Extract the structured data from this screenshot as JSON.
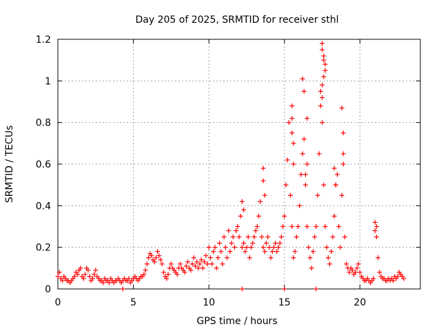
{
  "chart_data": {
    "type": "scatter",
    "title": "Day 205 of 2025, SRMTID for receiver sthl",
    "xlabel": "GPS time / hours",
    "ylabel": "SRMTID / TECUs",
    "xlim": [
      0,
      24
    ],
    "ylim": [
      0,
      1.2
    ],
    "xticks": [
      "0",
      "5",
      "10",
      "15",
      "20"
    ],
    "yticks": [
      "0",
      "0.2",
      "0.4",
      "0.6",
      "0.8",
      "1",
      "1.2"
    ],
    "grid": true,
    "marker": "+",
    "color": "#ff0000",
    "series": [
      {
        "name": "sthl",
        "x": [
          0.0,
          0.1,
          0.2,
          0.3,
          0.4,
          0.5,
          0.6,
          0.7,
          0.8,
          0.9,
          1.0,
          1.1,
          1.2,
          1.3,
          1.4,
          1.5,
          1.6,
          1.7,
          1.8,
          1.9,
          2.0,
          2.1,
          2.2,
          2.3,
          2.4,
          2.5,
          2.6,
          2.7,
          2.8,
          2.9,
          3.0,
          3.1,
          3.2,
          3.3,
          3.4,
          3.5,
          3.6,
          3.7,
          3.8,
          3.9,
          4.0,
          4.1,
          4.2,
          4.3,
          4.4,
          4.5,
          4.6,
          4.7,
          4.8,
          4.9,
          5.0,
          5.1,
          5.2,
          5.3,
          5.4,
          5.5,
          5.6,
          5.7,
          5.8,
          5.9,
          6.0,
          6.1,
          6.2,
          6.3,
          6.4,
          6.5,
          6.6,
          6.7,
          6.8,
          6.9,
          7.0,
          7.1,
          7.2,
          7.3,
          7.4,
          7.5,
          7.6,
          7.7,
          7.8,
          7.9,
          8.0,
          8.1,
          8.2,
          8.3,
          8.4,
          8.5,
          8.6,
          8.7,
          8.8,
          8.9,
          9.0,
          9.1,
          9.2,
          9.3,
          9.4,
          9.5,
          9.6,
          9.7,
          9.8,
          9.9,
          10.0,
          10.1,
          10.2,
          10.3,
          10.4,
          10.5,
          10.6,
          10.7,
          10.8,
          10.9,
          11.0,
          11.1,
          11.2,
          11.3,
          11.4,
          11.5,
          11.6,
          11.7,
          11.8,
          11.9,
          12.0,
          12.1,
          12.2,
          12.3,
          12.4,
          12.5,
          12.6,
          12.7,
          12.8,
          12.9,
          13.0,
          13.1,
          13.2,
          13.3,
          13.4,
          13.5,
          13.6,
          13.7,
          13.8,
          13.9,
          14.0,
          14.1,
          14.2,
          14.3,
          14.4,
          14.5,
          14.6,
          14.7,
          14.8,
          14.9,
          15.0,
          15.1,
          15.2,
          15.3,
          15.4,
          15.5,
          15.6,
          15.7,
          15.8,
          15.9,
          16.0,
          16.1,
          16.2,
          16.3,
          16.4,
          16.5,
          16.6,
          16.7,
          16.8,
          16.9,
          17.0,
          17.1,
          17.2,
          17.3,
          17.4,
          17.5,
          17.6,
          17.7,
          17.8,
          17.9,
          18.0,
          18.1,
          18.2,
          18.3,
          18.4,
          18.5,
          18.6,
          18.7,
          18.8,
          18.9,
          19.0,
          19.1,
          19.2,
          19.3,
          19.4,
          19.5,
          19.6,
          19.7,
          19.8,
          19.9,
          20.0,
          20.1,
          20.2,
          20.3,
          20.4,
          20.5,
          20.6,
          20.7,
          20.8,
          20.9,
          21.0,
          21.1,
          21.2,
          21.3,
          21.4,
          21.5,
          21.6,
          21.7,
          21.8,
          21.9,
          22.0,
          22.1,
          22.2,
          22.3,
          22.4,
          22.5,
          22.6,
          22.7,
          22.8,
          22.9,
          15.5,
          15.5,
          15.5,
          15.6,
          15.6,
          16.2,
          16.3,
          16.4,
          16.5,
          16.5,
          17.5,
          17.5,
          17.6,
          17.6,
          17.7,
          17.7,
          17.6,
          17.5,
          17.5,
          17.4,
          18.8,
          18.9,
          18.9,
          18.3,
          18.4,
          13.6,
          13.6,
          13.7,
          12.2,
          12.3,
          21.0,
          21.1,
          4.3,
          12.2,
          15.0,
          17.1
        ],
        "y": [
          0.06,
          0.08,
          0.05,
          0.04,
          0.06,
          0.05,
          0.04,
          0.04,
          0.03,
          0.04,
          0.05,
          0.06,
          0.08,
          0.07,
          0.09,
          0.1,
          0.06,
          0.05,
          0.07,
          0.1,
          0.09,
          0.06,
          0.04,
          0.05,
          0.07,
          0.09,
          0.06,
          0.05,
          0.04,
          0.04,
          0.03,
          0.05,
          0.04,
          0.04,
          0.03,
          0.05,
          0.04,
          0.03,
          0.04,
          0.04,
          0.05,
          0.04,
          0.03,
          0.04,
          0.05,
          0.04,
          0.04,
          0.05,
          0.03,
          0.04,
          0.05,
          0.06,
          0.05,
          0.04,
          0.05,
          0.06,
          0.06,
          0.07,
          0.09,
          0.12,
          0.15,
          0.17,
          0.16,
          0.14,
          0.13,
          0.15,
          0.18,
          0.16,
          0.14,
          0.12,
          0.08,
          0.06,
          0.05,
          0.07,
          0.1,
          0.12,
          0.1,
          0.09,
          0.08,
          0.07,
          0.1,
          0.12,
          0.1,
          0.09,
          0.08,
          0.11,
          0.13,
          0.1,
          0.09,
          0.12,
          0.15,
          0.11,
          0.13,
          0.1,
          0.12,
          0.14,
          0.1,
          0.13,
          0.16,
          0.12,
          0.2,
          0.15,
          0.12,
          0.18,
          0.2,
          0.1,
          0.15,
          0.22,
          0.18,
          0.12,
          0.25,
          0.2,
          0.15,
          0.28,
          0.18,
          0.22,
          0.25,
          0.2,
          0.28,
          0.3,
          0.25,
          0.35,
          0.2,
          0.22,
          0.18,
          0.2,
          0.25,
          0.15,
          0.2,
          0.22,
          0.25,
          0.28,
          0.3,
          0.35,
          0.42,
          0.25,
          0.2,
          0.18,
          0.22,
          0.25,
          0.2,
          0.15,
          0.18,
          0.2,
          0.22,
          0.18,
          0.2,
          0.22,
          0.25,
          0.3,
          0.35,
          0.5,
          0.62,
          0.8,
          0.45,
          0.3,
          0.15,
          0.18,
          0.25,
          0.3,
          0.4,
          0.55,
          0.65,
          0.72,
          0.5,
          0.3,
          0.2,
          0.15,
          0.1,
          0.18,
          0.25,
          0.3,
          0.45,
          0.65,
          0.95,
          0.8,
          0.5,
          0.3,
          0.2,
          0.15,
          0.12,
          0.18,
          0.25,
          0.35,
          0.5,
          0.55,
          0.3,
          0.2,
          0.45,
          0.65,
          0.25,
          0.12,
          0.1,
          0.08,
          0.1,
          0.09,
          0.07,
          0.08,
          0.1,
          0.12,
          0.08,
          0.06,
          0.05,
          0.04,
          0.04,
          0.05,
          0.04,
          0.03,
          0.04,
          0.05,
          0.28,
          0.25,
          0.15,
          0.08,
          0.06,
          0.05,
          0.05,
          0.04,
          0.04,
          0.05,
          0.04,
          0.05,
          0.04,
          0.06,
          0.05,
          0.06,
          0.08,
          0.07,
          0.06,
          0.05,
          0.88,
          0.82,
          0.75,
          0.7,
          0.6,
          1.01,
          0.95,
          0.55,
          0.82,
          0.6,
          1.18,
          1.15,
          1.12,
          1.1,
          1.08,
          1.05,
          1.02,
          0.98,
          0.92,
          0.88,
          0.87,
          0.75,
          0.6,
          0.58,
          0.5,
          0.58,
          0.52,
          0.45,
          0.42,
          0.38,
          0.32,
          0.3,
          0.0,
          0.0,
          0.0,
          0.0
        ]
      }
    ]
  }
}
